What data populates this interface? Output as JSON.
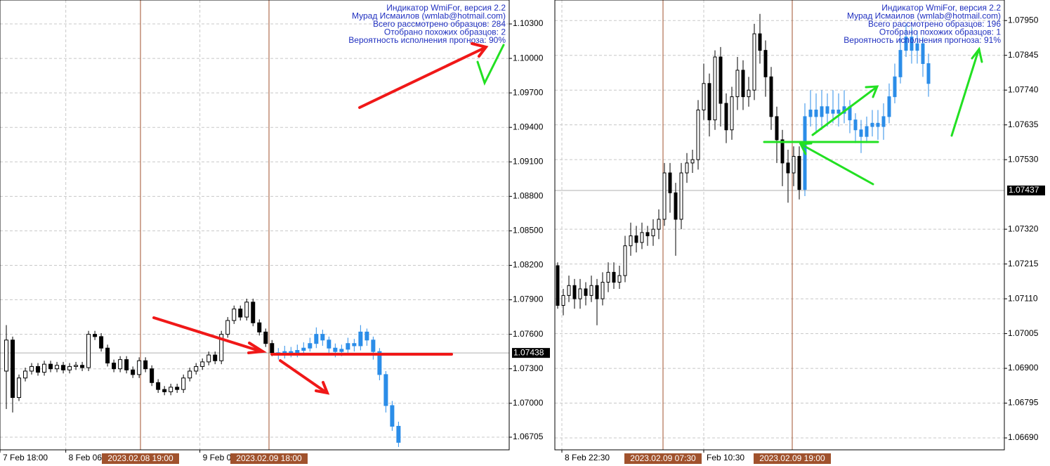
{
  "chart_data": [
    {
      "type": "candlestick",
      "annotations": [
        "Индикатор WmiFor, версия 2.2",
        "Мурад Исмаилов (wmlab@hotmail.com)",
        "Всего рассмотрено образцов: 284",
        "Отобрано похожих образцов: 2",
        "Вероятность исполнения прогноза: 90%"
      ],
      "markers": [
        "2023.02.08 19:00",
        "2023.02.09 18:00"
      ],
      "last_price": 1.07438,
      "ylim": [
        1.06595,
        1.10508
      ],
      "yticks": [
        {
          "value": 1.103,
          "label": "1.10300"
        },
        {
          "value": 1.1,
          "label": "1.10000"
        },
        {
          "value": 1.097,
          "label": "1.09700"
        },
        {
          "value": 1.094,
          "label": "1.09400"
        },
        {
          "value": 1.091,
          "label": "1.09100"
        },
        {
          "value": 1.088,
          "label": "1.08800"
        },
        {
          "value": 1.085,
          "label": "1.08500"
        },
        {
          "value": 1.082,
          "label": "1.08200"
        },
        {
          "value": 1.079,
          "label": "1.07900"
        },
        {
          "value": 1.076,
          "label": "1.07600"
        },
        {
          "value": 1.073,
          "label": "1.07300"
        },
        {
          "value": 1.07,
          "label": "1.07000"
        },
        1.06705
      ],
      "xlim": [
        -1,
        79.5
      ],
      "xticks": [
        {
          "value": -1,
          "label": "7 Feb 18:00"
        },
        {
          "value": 9.4,
          "label": "8 Feb 06"
        },
        {
          "value": 30.6,
          "label": "9 Feb 0"
        }
      ],
      "grid": true,
      "series": [
        {
          "color": "#000000",
          "hollow_up": true,
          "x": [
            0,
            1,
            2,
            3,
            4,
            5,
            6,
            7,
            8,
            9,
            10,
            11,
            12,
            13,
            14,
            15,
            16,
            17,
            18,
            19,
            20,
            21,
            22,
            23,
            24,
            25,
            26,
            27,
            28,
            29,
            30,
            31,
            32,
            33,
            34,
            35,
            36,
            37,
            38,
            39,
            40,
            41,
            42
          ],
          "open": [
            1.0728,
            1.0755,
            1.0705,
            1.0722,
            1.0728,
            1.0732,
            1.0727,
            1.0734,
            1.073,
            1.0733,
            1.0729,
            1.0732,
            1.0733,
            1.0731,
            1.076,
            1.0758,
            1.0748,
            1.0735,
            1.073,
            1.0738,
            1.0729,
            1.0725,
            1.0737,
            1.073,
            1.0718,
            1.0712,
            1.071,
            1.0714,
            1.0712,
            1.0722,
            1.0728,
            1.0732,
            1.0736,
            1.0742,
            1.0737,
            1.076,
            1.0772,
            1.0782,
            1.0775,
            1.0788,
            1.077,
            1.0762,
            1.0752
          ],
          "high": [
            1.0768,
            1.0758,
            1.0725,
            1.0731,
            1.0735,
            1.0735,
            1.0737,
            1.0737,
            1.0736,
            1.0736,
            1.0735,
            1.0736,
            1.0736,
            1.0763,
            1.0763,
            1.0761,
            1.0751,
            1.0738,
            1.0741,
            1.0741,
            1.0732,
            1.074,
            1.074,
            1.0733,
            1.0721,
            1.0715,
            1.0717,
            1.0717,
            1.0725,
            1.0731,
            1.0735,
            1.0739,
            1.0745,
            1.0745,
            1.0763,
            1.0775,
            1.0785,
            1.0785,
            1.0791,
            1.0791,
            1.0773,
            1.0765,
            1.0755
          ],
          "low": [
            1.0695,
            1.0692,
            1.0702,
            1.0719,
            1.0725,
            1.0724,
            1.0724,
            1.0727,
            1.0727,
            1.0726,
            1.0726,
            1.0729,
            1.0728,
            1.0728,
            1.0755,
            1.0745,
            1.0732,
            1.0727,
            1.0727,
            1.0726,
            1.0722,
            1.0722,
            1.0727,
            1.0715,
            1.0709,
            1.0707,
            1.0707,
            1.0709,
            1.0709,
            1.0719,
            1.0725,
            1.0729,
            1.0733,
            1.0734,
            1.0734,
            1.0757,
            1.0769,
            1.0772,
            1.0772,
            1.0767,
            1.0759,
            1.0749,
            1.0741
          ],
          "close": [
            1.0755,
            1.0705,
            1.0722,
            1.0728,
            1.0732,
            1.0727,
            1.0734,
            1.073,
            1.0733,
            1.0729,
            1.0732,
            1.0733,
            1.0731,
            1.076,
            1.0758,
            1.0748,
            1.0735,
            1.073,
            1.0738,
            1.0729,
            1.0725,
            1.0737,
            1.073,
            1.0718,
            1.0712,
            1.071,
            1.0714,
            1.0712,
            1.0722,
            1.0728,
            1.0732,
            1.0736,
            1.0742,
            1.0737,
            1.076,
            1.0772,
            1.0782,
            1.0775,
            1.0788,
            1.077,
            1.0762,
            1.0752,
            1.0744
          ]
        },
        {
          "color": "#2b8de8",
          "hollow_up": false,
          "x": [
            43,
            44,
            45,
            46,
            47,
            48,
            49,
            50,
            51,
            52,
            53,
            54,
            55,
            56,
            57,
            58,
            59,
            60,
            61,
            62
          ],
          "open": [
            1.0744,
            1.0742,
            1.0745,
            1.0743,
            1.0746,
            1.0748,
            1.0752,
            1.076,
            1.0755,
            1.0748,
            1.0745,
            1.0747,
            1.0752,
            1.075,
            1.0762,
            1.0755,
            1.0745,
            1.0725,
            1.0698,
            1.068
          ],
          "high": [
            1.0748,
            1.075,
            1.0749,
            1.0751,
            1.0753,
            1.0757,
            1.0766,
            1.0764,
            1.0758,
            1.0752,
            1.0751,
            1.0757,
            1.0756,
            1.0768,
            1.0765,
            1.0758,
            1.0748,
            1.0728,
            1.0702,
            1.0684
          ],
          "low": [
            1.0738,
            1.0739,
            1.074,
            1.074,
            1.0742,
            1.0745,
            1.0748,
            1.075,
            1.0744,
            1.074,
            1.0741,
            1.0744,
            1.0745,
            1.0746,
            1.075,
            1.0738,
            1.072,
            1.0692,
            1.0676,
            1.0662
          ],
          "close": [
            1.0742,
            1.0745,
            1.0743,
            1.0746,
            1.0748,
            1.0752,
            1.076,
            1.0755,
            1.0748,
            1.0745,
            1.0747,
            1.0752,
            1.075,
            1.0762,
            1.0755,
            1.0745,
            1.0725,
            1.0698,
            1.068,
            1.0666
          ]
        }
      ]
    },
    {
      "type": "candlestick",
      "annotations": [
        "Индикатор WmiFor, версия 2.2",
        "Мурад Исмаилов (wmlab@hotmail.com)",
        "Всего рассмотрено образцов: 196",
        "Отобрано похожих образцов: 1",
        "Вероятность исполнения прогноза: 91%"
      ],
      "markers": [
        "2023.02.09 07:30",
        "2023.02.09 19:00"
      ],
      "last_price": 1.07437,
      "ylim": [
        1.06654,
        1.08012
      ],
      "yticks": [
        {
          "value": 1.0795,
          "label": "1.07950"
        },
        1.07845,
        {
          "value": 1.0774,
          "label": "1.07740"
        },
        1.07635,
        {
          "value": 1.0753,
          "label": "1.07530"
        },
        {
          "value": 1.0732,
          "label": "1.07320"
        },
        1.07215,
        {
          "value": 1.0711,
          "label": "1.07110"
        },
        1.07005,
        {
          "value": 1.069,
          "label": "1.06900"
        },
        1.06795,
        {
          "value": 1.0669,
          "label": "1.06690"
        }
      ],
      "xlim": [
        -0.5,
        79.5
      ],
      "xticks": [
        {
          "value": 0.75,
          "label": "8 Feb 22:30"
        },
        {
          "value": 26,
          "label": "Feb 10:30"
        }
      ],
      "grid": true,
      "series": [
        {
          "color": "#000000",
          "hollow_up": true,
          "x": [
            0,
            1,
            2,
            3,
            4,
            5,
            6,
            7,
            8,
            9,
            10,
            11,
            12,
            13,
            14,
            15,
            16,
            17,
            18,
            19,
            20,
            21,
            22,
            23,
            24,
            25,
            26,
            27,
            28,
            29,
            30,
            31,
            32,
            33,
            34,
            35,
            36,
            37,
            38,
            39,
            40,
            41,
            42,
            43
          ],
          "open": [
            1.0721,
            1.0709,
            1.0712,
            1.0715,
            1.0711,
            1.0714,
            1.0712,
            1.0715,
            1.0711,
            1.0716,
            1.0719,
            1.0716,
            1.0718,
            1.0727,
            1.073,
            1.0728,
            1.0731,
            1.073,
            1.0732,
            1.0735,
            1.0749,
            1.0743,
            1.0735,
            1.0749,
            1.0752,
            1.0753,
            1.0768,
            1.0776,
            1.0765,
            1.0784,
            1.077,
            1.0762,
            1.0772,
            1.078,
            1.0772,
            1.0774,
            1.0791,
            1.0786,
            1.0778,
            1.0766,
            1.0759,
            1.0752,
            1.0749,
            1.0754
          ],
          "high": [
            1.0722,
            1.0714,
            1.0718,
            1.0717,
            1.0717,
            1.0716,
            1.0718,
            1.0717,
            1.0719,
            1.0722,
            1.0722,
            1.0721,
            1.073,
            1.0734,
            1.0733,
            1.0734,
            1.0733,
            1.0735,
            1.0738,
            1.0752,
            1.0752,
            1.0746,
            1.0752,
            1.0755,
            1.0756,
            1.0771,
            1.0782,
            1.0779,
            1.0786,
            1.0787,
            1.0773,
            1.0775,
            1.0784,
            1.0783,
            1.0778,
            1.0794,
            1.0797,
            1.0789,
            1.0781,
            1.0769,
            1.0762,
            1.0756,
            1.0757,
            1.0757
          ],
          "low": [
            1.0708,
            1.0706,
            1.071,
            1.0708,
            1.0708,
            1.0709,
            1.071,
            1.0703,
            1.0709,
            1.0713,
            1.0714,
            1.0714,
            1.0716,
            1.0724,
            1.0725,
            1.0726,
            1.0727,
            1.0727,
            1.0729,
            1.0733,
            1.0737,
            1.0724,
            1.0732,
            1.0746,
            1.0749,
            1.075,
            1.0765,
            1.076,
            1.0762,
            1.0763,
            1.0758,
            1.0759,
            1.0768,
            1.0768,
            1.0769,
            1.0771,
            1.0782,
            1.0772,
            1.0762,
            1.0752,
            1.0745,
            1.074,
            1.0745,
            1.0741
          ],
          "close": [
            1.0709,
            1.0712,
            1.0715,
            1.0711,
            1.0714,
            1.0712,
            1.0715,
            1.0711,
            1.0716,
            1.0719,
            1.0716,
            1.0718,
            1.0727,
            1.073,
            1.0728,
            1.0731,
            1.073,
            1.0732,
            1.0735,
            1.0749,
            1.0743,
            1.0735,
            1.0749,
            1.0752,
            1.0753,
            1.0768,
            1.0776,
            1.0765,
            1.0784,
            1.077,
            1.0762,
            1.0772,
            1.078,
            1.0772,
            1.0774,
            1.0791,
            1.0786,
            1.0778,
            1.0766,
            1.0759,
            1.0752,
            1.0749,
            1.0754,
            1.0744
          ]
        },
        {
          "color": "#2b8de8",
          "hollow_up": false,
          "x": [
            44,
            45,
            46,
            47,
            48,
            49,
            50,
            51,
            52,
            53,
            54,
            55,
            56,
            57,
            58,
            59,
            60,
            61,
            62,
            63,
            64,
            65,
            66
          ],
          "open": [
            1.0744,
            1.0766,
            1.0768,
            1.0766,
            1.0769,
            1.0767,
            1.0768,
            1.0767,
            1.0769,
            1.0765,
            1.0762,
            1.076,
            1.0763,
            1.0764,
            1.0763,
            1.0766,
            1.0772,
            1.0778,
            1.0786,
            1.079,
            1.0786,
            1.0788,
            1.0782
          ],
          "high": [
            1.077,
            1.0774,
            1.0773,
            1.0774,
            1.0773,
            1.0774,
            1.0773,
            1.0774,
            1.0771,
            1.0767,
            1.0765,
            1.0766,
            1.0768,
            1.0768,
            1.077,
            1.0776,
            1.0782,
            1.079,
            1.0794,
            1.0793,
            1.0792,
            1.079,
            1.0785
          ],
          "low": [
            1.0742,
            1.0763,
            1.0761,
            1.0762,
            1.0763,
            1.0764,
            1.0763,
            1.0764,
            1.0761,
            1.0758,
            1.0755,
            1.0758,
            1.076,
            1.0759,
            1.0759,
            1.0764,
            1.077,
            1.0776,
            1.0784,
            1.0782,
            1.0782,
            1.0778,
            1.0772
          ],
          "close": [
            1.0766,
            1.0768,
            1.0766,
            1.0769,
            1.0767,
            1.0768,
            1.0767,
            1.0769,
            1.0765,
            1.0762,
            1.076,
            1.0763,
            1.0764,
            1.0763,
            1.0766,
            1.0772,
            1.0778,
            1.0786,
            1.079,
            1.0786,
            1.0788,
            1.0782,
            1.0776
          ]
        }
      ]
    }
  ]
}
